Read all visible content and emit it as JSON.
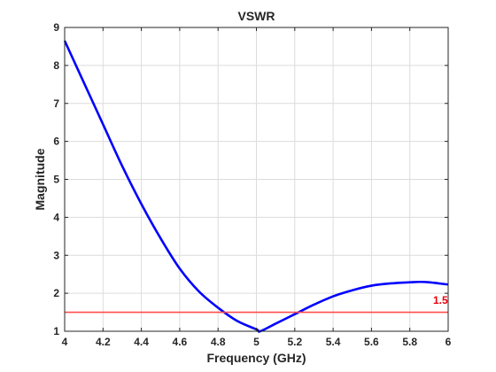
{
  "chart_data": {
    "type": "line",
    "title": "VSWR",
    "xlabel": "Frequency (GHz)",
    "ylabel": "Magnitude",
    "xlim": [
      4,
      6
    ],
    "ylim": [
      1,
      9
    ],
    "x_ticks": [
      4,
      4.2,
      4.4,
      4.6,
      4.8,
      5,
      5.2,
      5.4,
      5.6,
      5.8,
      6
    ],
    "x_tick_labels": [
      "4",
      "4.2",
      "4.4",
      "4.6",
      "4.8",
      "5",
      "5.2",
      "5.4",
      "5.6",
      "5.8",
      "6"
    ],
    "y_ticks": [
      1,
      2,
      3,
      4,
      5,
      6,
      7,
      8,
      9
    ],
    "y_tick_labels": [
      "1",
      "2",
      "3",
      "4",
      "5",
      "6",
      "7",
      "8",
      "9"
    ],
    "grid": true,
    "series": [
      {
        "color": "#0000ff",
        "x": [
          4.0,
          4.1,
          4.2,
          4.3,
          4.4,
          4.5,
          4.6,
          4.7,
          4.8,
          4.9,
          5.0,
          5.02,
          5.1,
          5.2,
          5.3,
          5.4,
          5.5,
          5.6,
          5.7,
          5.8,
          5.85,
          5.9,
          6.0
        ],
        "y": [
          8.65,
          7.55,
          6.45,
          5.35,
          4.35,
          3.45,
          2.65,
          2.05,
          1.62,
          1.27,
          1.05,
          1.0,
          1.2,
          1.45,
          1.7,
          1.92,
          2.08,
          2.2,
          2.26,
          2.29,
          2.3,
          2.29,
          2.23
        ]
      },
      {
        "color": "#ff4d4d",
        "x": [
          4,
          6
        ],
        "y": [
          1.5,
          1.5
        ]
      }
    ],
    "annotations": [
      {
        "text": "1.5",
        "x": 5.96,
        "y": 1.72,
        "color": "#e8000b"
      }
    ]
  }
}
